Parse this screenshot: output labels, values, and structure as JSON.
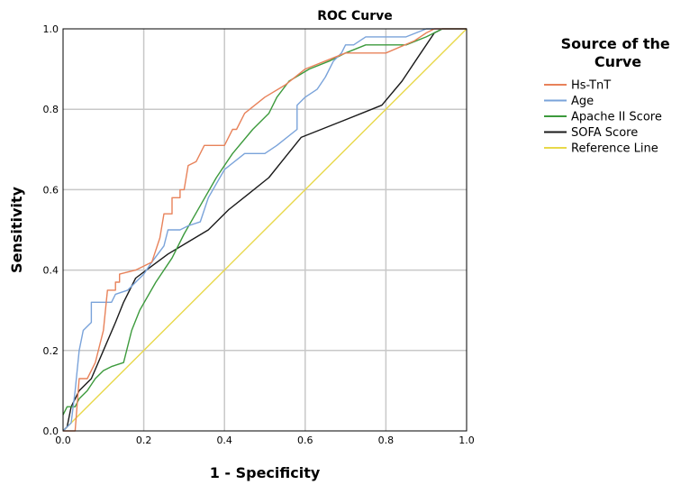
{
  "chart_data": {
    "type": "line",
    "title": "ROC Curve",
    "xlabel": "1 - Specificity",
    "ylabel": "Sensitivity",
    "xlim": [
      0,
      1
    ],
    "ylim": [
      0,
      1
    ],
    "xticks": [
      "0.0",
      "0.2",
      "0.4",
      "0.6",
      "0.8",
      "1.0"
    ],
    "yticks": [
      "0.0",
      "0.2",
      "0.4",
      "0.6",
      "0.8",
      "1.0"
    ],
    "grid": true,
    "legend": {
      "title": "Source of the Curve",
      "placement": "right"
    },
    "series": [
      {
        "name": "Hs-TnT",
        "color": "#e8825a",
        "points": [
          [
            0,
            0
          ],
          [
            0.03,
            0.0
          ],
          [
            0.04,
            0.13
          ],
          [
            0.06,
            0.13
          ],
          [
            0.08,
            0.17
          ],
          [
            0.1,
            0.25
          ],
          [
            0.11,
            0.35
          ],
          [
            0.13,
            0.35
          ],
          [
            0.13,
            0.37
          ],
          [
            0.14,
            0.37
          ],
          [
            0.14,
            0.39
          ],
          [
            0.18,
            0.4
          ],
          [
            0.22,
            0.42
          ],
          [
            0.24,
            0.48
          ],
          [
            0.25,
            0.54
          ],
          [
            0.27,
            0.54
          ],
          [
            0.27,
            0.58
          ],
          [
            0.29,
            0.58
          ],
          [
            0.29,
            0.6
          ],
          [
            0.3,
            0.6
          ],
          [
            0.31,
            0.66
          ],
          [
            0.33,
            0.67
          ],
          [
            0.35,
            0.71
          ],
          [
            0.4,
            0.71
          ],
          [
            0.42,
            0.75
          ],
          [
            0.43,
            0.75
          ],
          [
            0.45,
            0.79
          ],
          [
            0.5,
            0.83
          ],
          [
            0.55,
            0.86
          ],
          [
            0.6,
            0.9
          ],
          [
            0.65,
            0.92
          ],
          [
            0.7,
            0.94
          ],
          [
            0.8,
            0.94
          ],
          [
            0.87,
            0.97
          ],
          [
            0.9,
            0.99
          ],
          [
            0.92,
            1.0
          ],
          [
            1,
            1
          ]
        ]
      },
      {
        "name": "Age",
        "color": "#7aa3da",
        "points": [
          [
            0,
            0
          ],
          [
            0.02,
            0.02
          ],
          [
            0.03,
            0.1
          ],
          [
            0.04,
            0.2
          ],
          [
            0.05,
            0.25
          ],
          [
            0.07,
            0.27
          ],
          [
            0.07,
            0.32
          ],
          [
            0.1,
            0.32
          ],
          [
            0.12,
            0.32
          ],
          [
            0.13,
            0.34
          ],
          [
            0.16,
            0.35
          ],
          [
            0.2,
            0.39
          ],
          [
            0.22,
            0.42
          ],
          [
            0.25,
            0.46
          ],
          [
            0.26,
            0.5
          ],
          [
            0.29,
            0.5
          ],
          [
            0.31,
            0.51
          ],
          [
            0.34,
            0.52
          ],
          [
            0.36,
            0.58
          ],
          [
            0.4,
            0.65
          ],
          [
            0.45,
            0.69
          ],
          [
            0.5,
            0.69
          ],
          [
            0.53,
            0.71
          ],
          [
            0.58,
            0.75
          ],
          [
            0.58,
            0.81
          ],
          [
            0.6,
            0.83
          ],
          [
            0.63,
            0.85
          ],
          [
            0.65,
            0.88
          ],
          [
            0.67,
            0.92
          ],
          [
            0.69,
            0.94
          ],
          [
            0.7,
            0.96
          ],
          [
            0.72,
            0.96
          ],
          [
            0.75,
            0.98
          ],
          [
            0.85,
            0.98
          ],
          [
            0.9,
            1.0
          ],
          [
            1,
            1
          ]
        ]
      },
      {
        "name": "Apache II Score",
        "color": "#3c9a3c",
        "points": [
          [
            0,
            0.04
          ],
          [
            0.01,
            0.06
          ],
          [
            0.03,
            0.06
          ],
          [
            0.04,
            0.08
          ],
          [
            0.06,
            0.1
          ],
          [
            0.08,
            0.13
          ],
          [
            0.1,
            0.15
          ],
          [
            0.12,
            0.16
          ],
          [
            0.15,
            0.17
          ],
          [
            0.17,
            0.25
          ],
          [
            0.19,
            0.3
          ],
          [
            0.23,
            0.37
          ],
          [
            0.27,
            0.43
          ],
          [
            0.3,
            0.49
          ],
          [
            0.34,
            0.56
          ],
          [
            0.38,
            0.63
          ],
          [
            0.42,
            0.69
          ],
          [
            0.47,
            0.75
          ],
          [
            0.51,
            0.79
          ],
          [
            0.53,
            0.83
          ],
          [
            0.56,
            0.87
          ],
          [
            0.61,
            0.9
          ],
          [
            0.66,
            0.92
          ],
          [
            0.7,
            0.94
          ],
          [
            0.75,
            0.96
          ],
          [
            0.8,
            0.96
          ],
          [
            0.85,
            0.96
          ],
          [
            0.9,
            0.98
          ],
          [
            0.94,
            1.0
          ],
          [
            1,
            1
          ]
        ]
      },
      {
        "name": "SOFA Score",
        "color": "#1a1a1a",
        "points": [
          [
            0,
            0.0
          ],
          [
            0.01,
            0.01
          ],
          [
            0.02,
            0.06
          ],
          [
            0.04,
            0.1
          ],
          [
            0.07,
            0.13
          ],
          [
            0.1,
            0.2
          ],
          [
            0.13,
            0.27
          ],
          [
            0.15,
            0.32
          ],
          [
            0.18,
            0.38
          ],
          [
            0.22,
            0.41
          ],
          [
            0.26,
            0.44
          ],
          [
            0.31,
            0.47
          ],
          [
            0.36,
            0.5
          ],
          [
            0.41,
            0.55
          ],
          [
            0.46,
            0.59
          ],
          [
            0.51,
            0.63
          ],
          [
            0.55,
            0.68
          ],
          [
            0.59,
            0.73
          ],
          [
            0.64,
            0.75
          ],
          [
            0.69,
            0.77
          ],
          [
            0.74,
            0.79
          ],
          [
            0.79,
            0.81
          ],
          [
            0.84,
            0.87
          ],
          [
            0.88,
            0.93
          ],
          [
            0.92,
            0.99
          ],
          [
            0.94,
            1.0
          ],
          [
            1,
            1
          ]
        ]
      },
      {
        "name": "Reference Line",
        "color": "#e8d84a",
        "points": [
          [
            0,
            0
          ],
          [
            1,
            1
          ]
        ]
      }
    ]
  }
}
